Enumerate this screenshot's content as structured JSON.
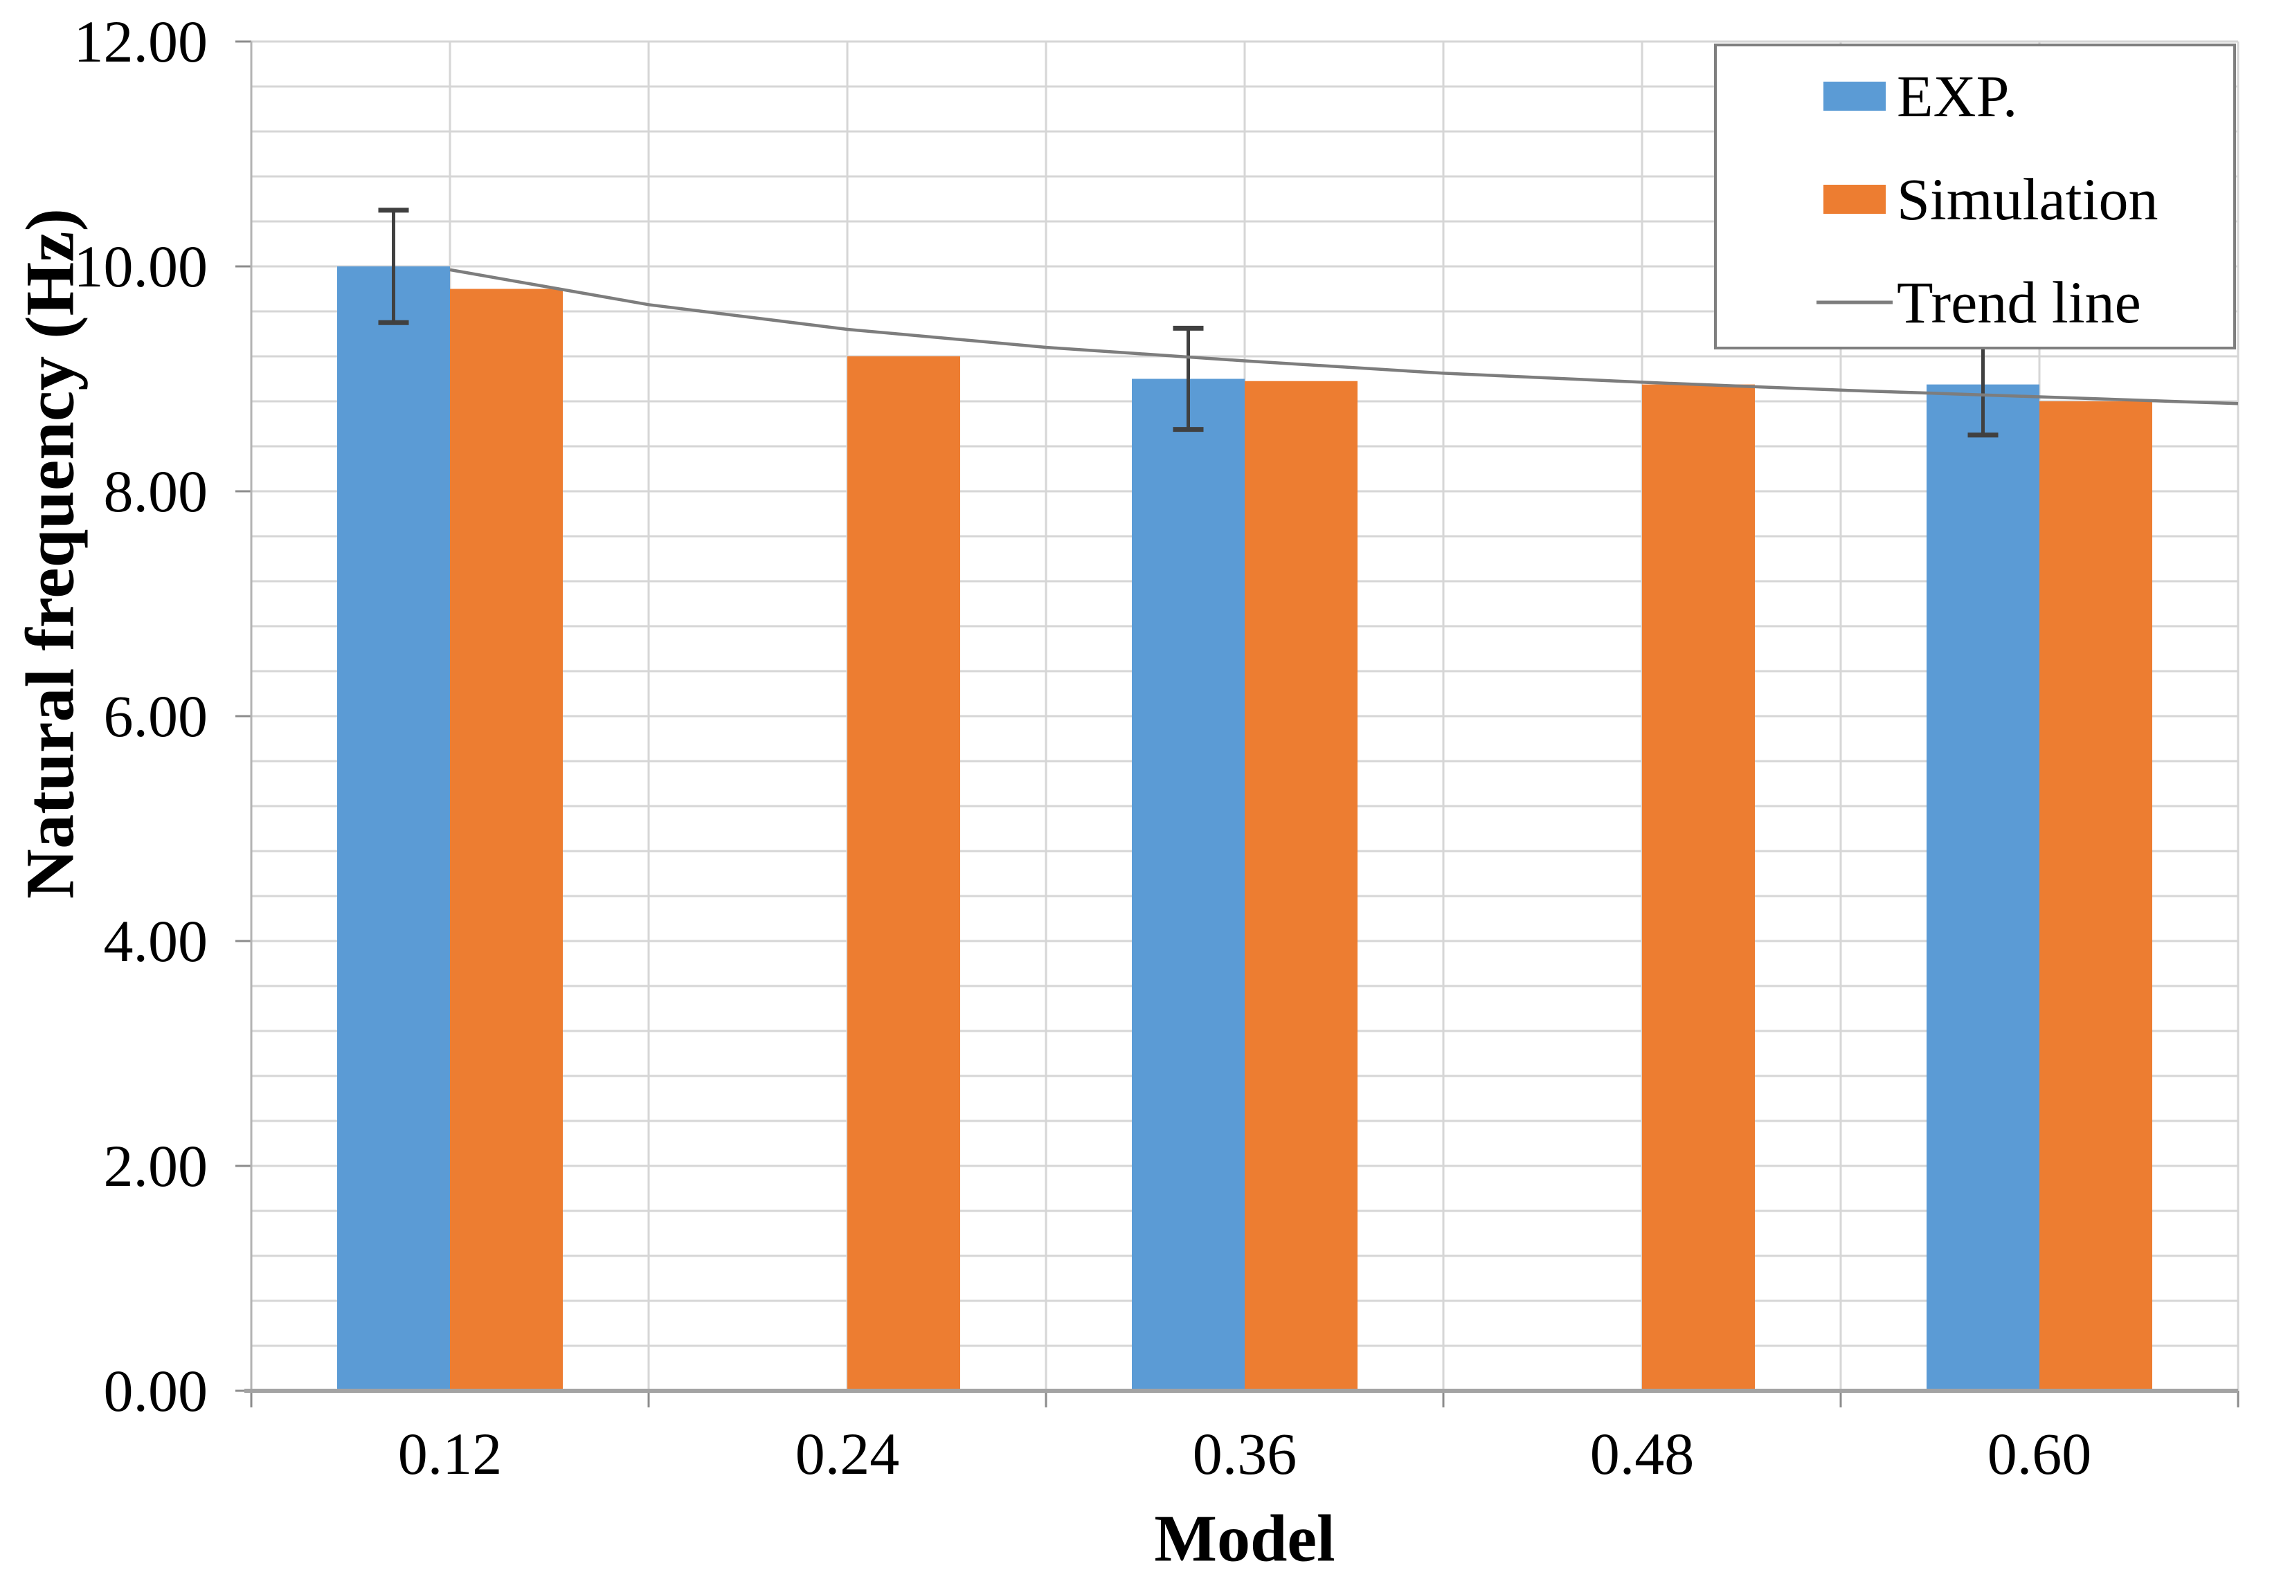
{
  "chart_data": {
    "type": "bar",
    "title": "",
    "xlabel": "Model",
    "ylabel": "Natural frequency (Hz)",
    "categories": [
      "0.12",
      "0.24",
      "0.36",
      "0.48",
      "0.60"
    ],
    "series": [
      {
        "name": "EXP.",
        "color": "#5b9bd5",
        "values": [
          10.0,
          null,
          9.0,
          null,
          8.95
        ],
        "error_bars": [
          0.5,
          null,
          0.45,
          null,
          0.45
        ]
      },
      {
        "name": "Simulation",
        "color": "#ed7d31",
        "values": [
          9.8,
          9.2,
          8.98,
          8.95,
          8.8
        ],
        "error_bars": [
          null,
          null,
          null,
          null,
          null
        ]
      }
    ],
    "trend_line": {
      "name": "Trend line",
      "color": "#7d7d7d",
      "points_t": [
        1,
        1.5,
        2,
        2.5,
        3,
        3.5,
        4,
        4.5,
        5,
        5.5
      ],
      "points_v": [
        9.97,
        9.66,
        9.44,
        9.28,
        9.16,
        9.05,
        8.97,
        8.9,
        8.84,
        8.78
      ]
    },
    "y_axis": {
      "min": 0,
      "max": 12,
      "major_step": 2,
      "minor_step": 0.4,
      "tick_labels": [
        "0.00",
        "2.00",
        "4.00",
        "6.00",
        "8.00",
        "10.00",
        "12.00"
      ]
    },
    "x_axis": {
      "tick_labels": [
        "0.12",
        "0.24",
        "0.36",
        "0.48",
        "0.60"
      ]
    },
    "legend": {
      "position": "top-right",
      "entries": [
        {
          "label": "EXP.",
          "swatch": "rect",
          "color": "#5b9bd5"
        },
        {
          "label": "Simulation",
          "swatch": "rect",
          "color": "#ed7d31"
        },
        {
          "label": "Trend line",
          "swatch": "line",
          "color": "#7d7d7d"
        }
      ]
    },
    "grid": {
      "horizontal": true,
      "vertical": true
    },
    "colors": {
      "gridline": "#d6d6d6",
      "axis_line": "#b3b3b3",
      "baseline": "#a3a3a3",
      "tick_mark": "#8c8c8c",
      "error_bar": "#404040",
      "legend_border": "#7f7f7f",
      "background": "#ffffff",
      "text": "#000000"
    }
  }
}
